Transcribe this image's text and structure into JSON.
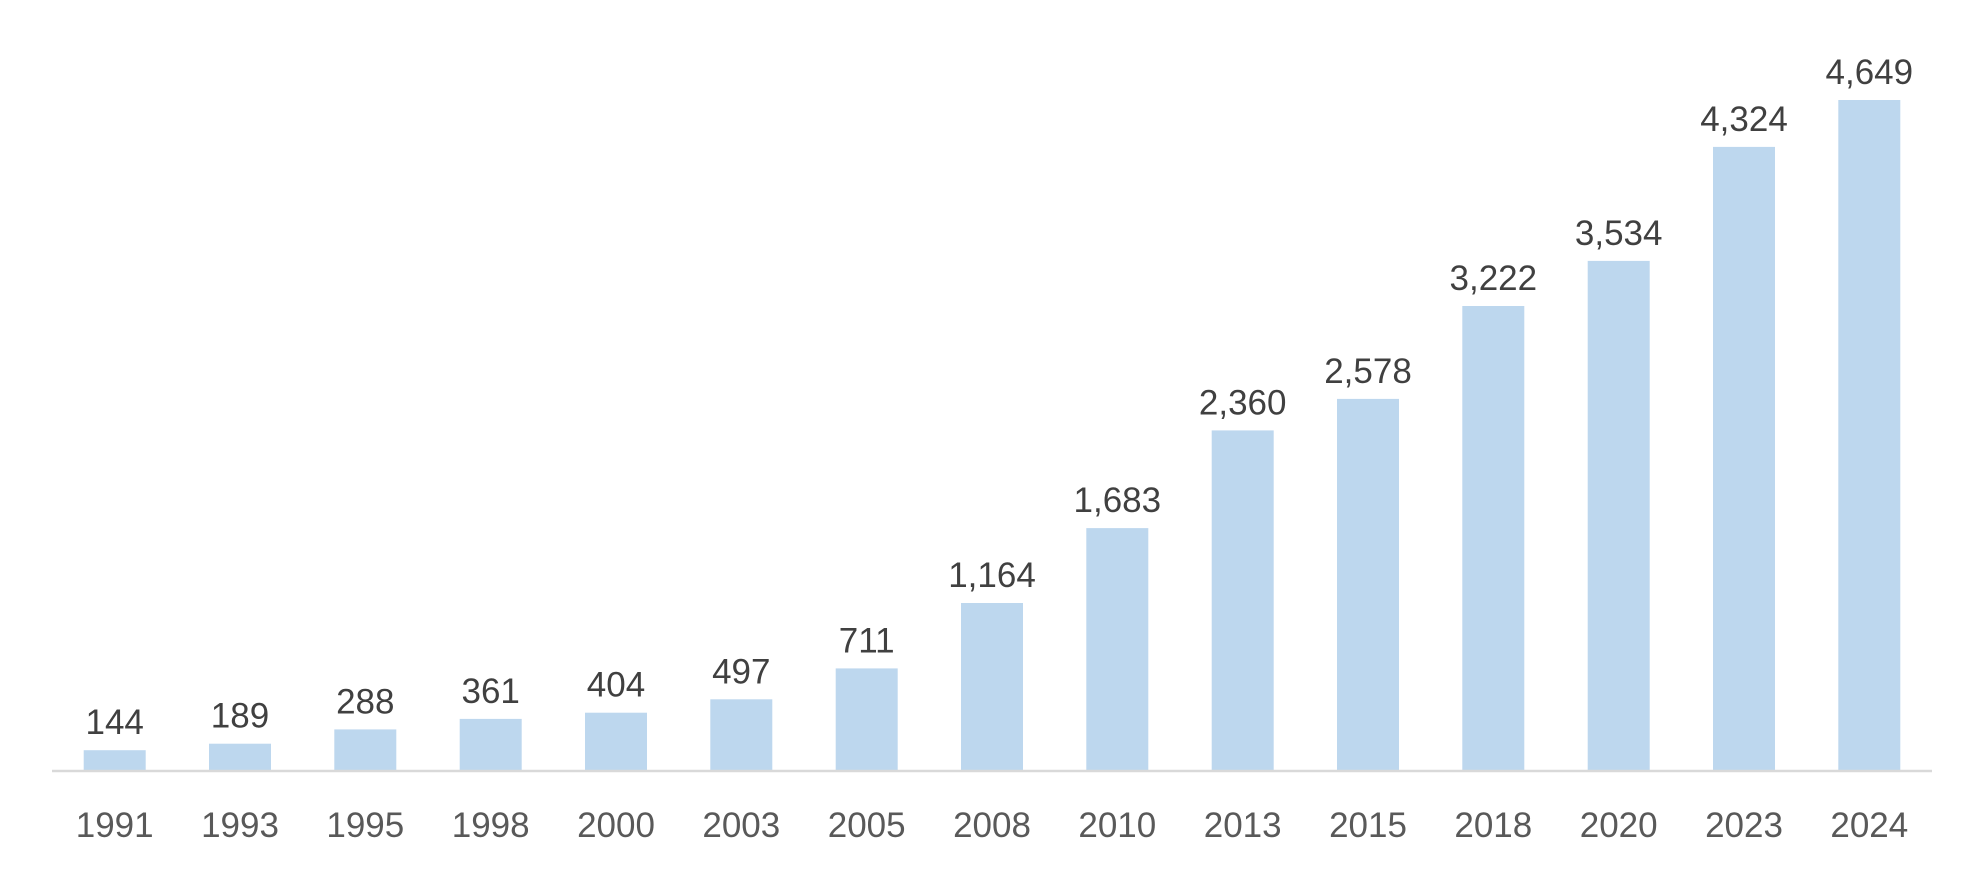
{
  "chart_data": {
    "type": "bar",
    "title": "",
    "xlabel": "",
    "ylabel": "",
    "categories": [
      "1991",
      "1993",
      "1995",
      "1998",
      "2000",
      "2003",
      "2005",
      "2008",
      "2010",
      "2013",
      "2015",
      "2018",
      "2020",
      "2023",
      "2024"
    ],
    "values": [
      144,
      189,
      288,
      361,
      404,
      497,
      711,
      1164,
      1683,
      2360,
      2578,
      3222,
      3534,
      4324,
      4649
    ],
    "data_labels": [
      "144",
      "189",
      "288",
      "361",
      "404",
      "497",
      "711",
      "1,164",
      "1,683",
      "2,360",
      "2,578",
      "3,222",
      "3,534",
      "4,324",
      "4,649"
    ],
    "ylim": [
      0,
      4649
    ],
    "grid": false,
    "legend": "none",
    "bar_color": "#bdd7ee",
    "label_color": "#404040",
    "tick_color": "#595959",
    "axis_color": "#d9d9d9"
  }
}
